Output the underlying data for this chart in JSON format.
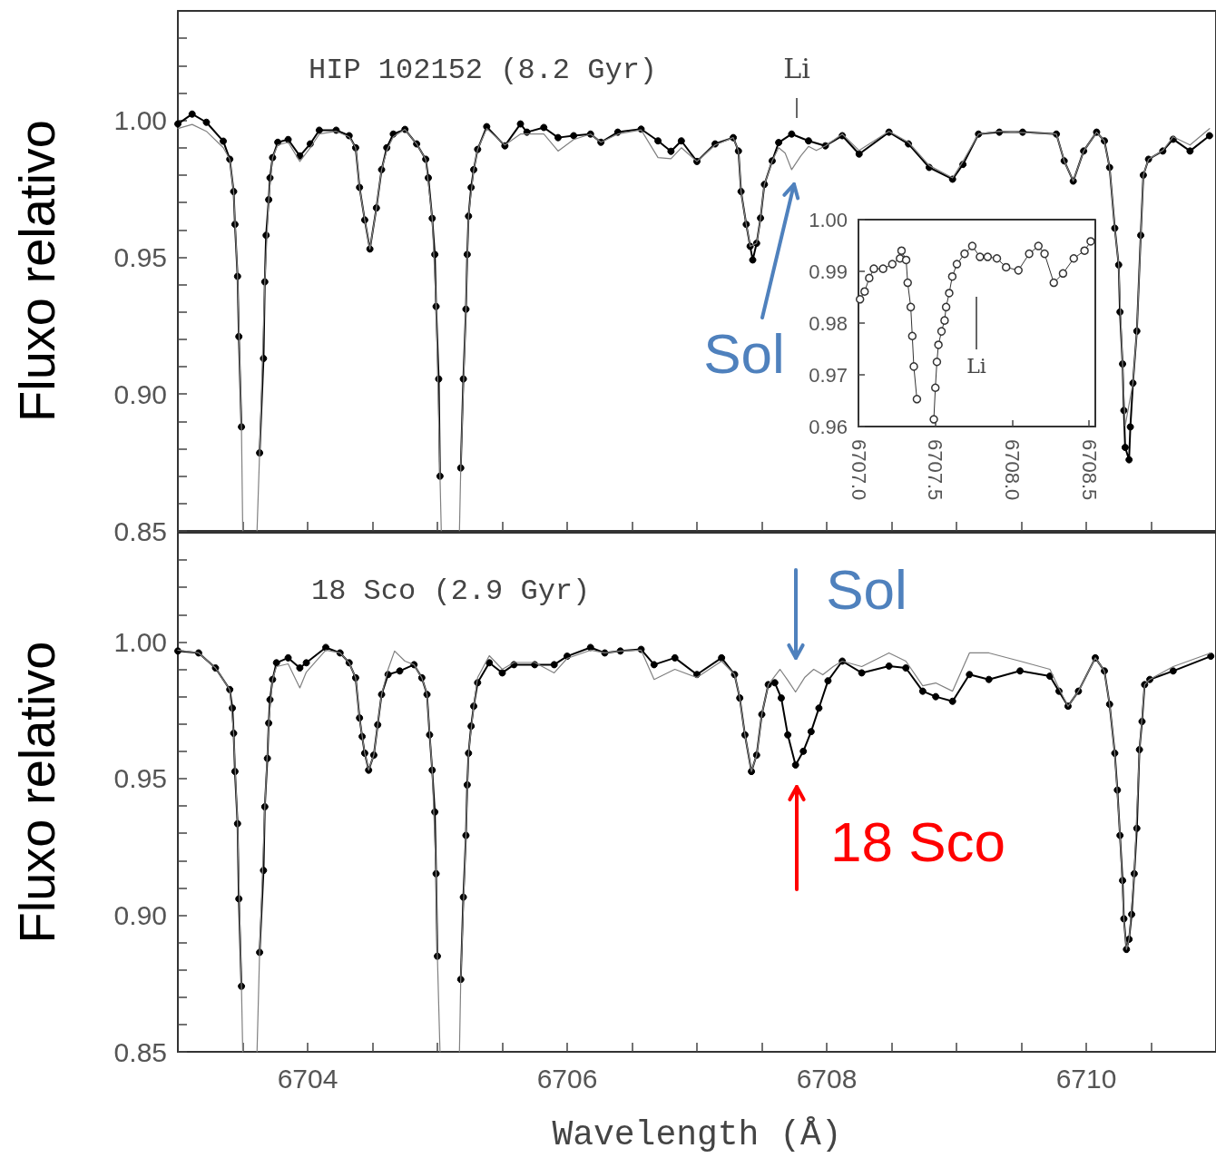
{
  "chart_data": [
    {
      "type": "line",
      "ylabel": "Fluxo relativo",
      "xlim": [
        6703,
        6711
      ],
      "ylim": [
        0.85,
        1.04
      ],
      "tick_labels": "y",
      "line_style": "solid",
      "xticks": [
        {
          "value": 6703.5,
          "label": null
        },
        {
          "value": 6704,
          "label": null
        },
        {
          "value": 6704.5,
          "label": null
        },
        {
          "value": 6705,
          "label": null
        },
        {
          "value": 6705.5,
          "label": null
        },
        {
          "value": 6706,
          "label": null
        },
        {
          "value": 6706.5,
          "label": null
        },
        {
          "value": 6707,
          "label": null
        },
        {
          "value": 6707.5,
          "label": null
        },
        {
          "value": 6708,
          "label": null
        },
        {
          "value": 6708.5,
          "label": null
        },
        {
          "value": 6709,
          "label": null
        },
        {
          "value": 6709.5,
          "label": null
        },
        {
          "value": 6710,
          "label": null
        },
        {
          "value": 6710.5,
          "label": null
        }
      ],
      "yticks": [
        {
          "value": 0.85,
          "label": "0.85"
        },
        {
          "value": 0.86,
          "label": null
        },
        {
          "value": 0.87,
          "label": null
        },
        {
          "value": 0.88,
          "label": null
        },
        {
          "value": 0.89,
          "label": null
        },
        {
          "value": 0.9,
          "label": "0.90"
        },
        {
          "value": 0.91,
          "label": null
        },
        {
          "value": 0.92,
          "label": null
        },
        {
          "value": 0.93,
          "label": null
        },
        {
          "value": 0.94,
          "label": null
        },
        {
          "value": 0.95,
          "label": "0.95"
        },
        {
          "value": 0.96,
          "label": null
        },
        {
          "value": 0.97,
          "label": null
        },
        {
          "value": 0.98,
          "label": null
        },
        {
          "value": 0.99,
          "label": null
        },
        {
          "value": 1,
          "label": "1.00"
        },
        {
          "value": 1.01,
          "label": null
        },
        {
          "value": 1.02,
          "label": null
        },
        {
          "value": 1.03,
          "label": null
        }
      ],
      "annotations": [
        "HIP 102152 (8.2 Gyr)",
        "Li",
        "Sol"
      ],
      "series": [
        {
          "color": "#000000",
          "marker": "circle",
          "x": [
            6703.0,
            6703.11,
            6703.22,
            6703.35,
            6703.4,
            6703.43,
            6703.44,
            6703.46,
            6703.47,
            6703.49,
            6703.55,
            6703.63,
            6703.66,
            6703.67,
            6703.68,
            6703.7,
            6703.71,
            6703.73,
            6703.77,
            6703.85,
            6703.94,
            6704.02,
            6704.09,
            6704.22,
            6704.32,
            6704.37,
            6704.4,
            6704.44,
            6704.48,
            6704.53,
            6704.57,
            6704.61,
            6704.66,
            6704.75,
            6704.84,
            6704.91,
            6704.93,
            6704.96,
            6704.98,
            6704.99,
            6705.01,
            6705.02,
            6705.1,
            6705.18,
            6705.2,
            6705.22,
            6705.23,
            6705.24,
            6705.26,
            6705.28,
            6705.31,
            6705.38,
            6705.52,
            6705.64,
            6705.69,
            6705.82,
            6705.93,
            6706.05,
            6706.18,
            6706.26,
            6706.39,
            6706.57,
            6706.7,
            6706.8,
            6706.88,
            6707.0,
            6707.14,
            6707.28,
            6707.32,
            6707.34,
            6707.38,
            6707.41,
            6707.43,
            6707.46,
            6707.49,
            6707.52,
            6707.58,
            6707.63,
            6707.73,
            6707.86,
            6707.99,
            6708.12,
            6708.25,
            6708.48,
            6708.63,
            6708.79,
            6708.97,
            6709.05,
            6709.17,
            6709.33,
            6709.51,
            6709.77,
            6709.83,
            6709.9,
            6709.98,
            6710.08,
            6710.14,
            6710.18,
            6710.22,
            6710.25,
            6710.26,
            6710.28,
            6710.29,
            6710.3,
            6710.33,
            6710.34,
            6710.36,
            6710.39,
            6710.42,
            6710.44,
            6710.48,
            6710.59,
            6710.67,
            6710.8,
            6710.95
          ],
          "values": [
            0.9987,
            1.0023,
            0.9993,
            0.9924,
            0.9858,
            0.974,
            0.962,
            0.943,
            0.921,
            0.888,
            null,
            0.8785,
            0.913,
            0.941,
            0.958,
            0.971,
            0.979,
            0.9864,
            0.992,
            0.993,
            0.987,
            0.9914,
            0.9964,
            0.9964,
            0.9944,
            0.99,
            0.9755,
            0.9636,
            0.953,
            0.968,
            0.982,
            0.99,
            0.995,
            0.9967,
            0.9914,
            0.9858,
            0.979,
            0.9642,
            0.951,
            0.932,
            0.9055,
            0.87,
            null,
            0.873,
            0.9055,
            0.931,
            0.951,
            0.965,
            0.9755,
            0.982,
            0.9894,
            0.9977,
            0.9907,
            0.9987,
            0.9957,
            0.9974,
            0.9937,
            0.9944,
            0.995,
            0.992,
            0.9957,
            0.9968,
            0.9925,
            0.9887,
            0.9925,
            0.985,
            0.9914,
            0.9937,
            0.9888,
            0.974,
            0.962,
            0.954,
            0.949,
            0.9551,
            0.9643,
            0.9766,
            0.9852,
            0.9919,
            0.995,
            0.9925,
            0.9907,
            0.9944,
            0.9877,
            0.9957,
            0.9914,
            0.9828,
            0.9785,
            0.9839,
            0.995,
            0.9957,
            0.9957,
            0.995,
            0.9852,
            0.9778,
            0.9888,
            0.9957,
            0.9925,
            0.9828,
            0.9606,
            0.9472,
            0.93,
            0.911,
            0.894,
            0.8805,
            0.876,
            0.888,
            0.904,
            0.923,
            0.958,
            0.98,
            0.9858,
            0.9888,
            0.9931,
            0.9888,
            0.9944
          ]
        },
        {
          "color": "#808080",
          "marker": "none",
          "x": [
            6703.0,
            6703.11,
            6703.22,
            6703.35,
            6703.4,
            6703.43,
            6703.46,
            6703.49,
            6703.5,
            6703.55,
            6703.61,
            6703.63,
            6703.67,
            6703.7,
            6703.73,
            6703.77,
            6703.85,
            6703.94,
            6704.02,
            6704.09,
            6704.22,
            6704.32,
            6704.37,
            6704.4,
            6704.44,
            6704.48,
            6704.53,
            6704.57,
            6704.61,
            6704.66,
            6704.75,
            6704.84,
            6704.91,
            6704.96,
            6704.99,
            6705.02,
            6705.03,
            6705.1,
            6705.17,
            6705.18,
            6705.22,
            6705.24,
            6705.28,
            6705.31,
            6705.38,
            6705.52,
            6705.64,
            6705.82,
            6705.93,
            6706.05,
            6706.18,
            6706.26,
            6706.39,
            6706.57,
            6706.7,
            6706.8,
            6706.88,
            6707.0,
            6707.14,
            6707.28,
            6707.32,
            6707.34,
            6707.38,
            6707.41,
            6707.46,
            6707.49,
            6707.52,
            6707.58,
            6707.63,
            6707.68,
            6707.73,
            6707.8,
            6707.86,
            6707.92,
            6707.99,
            6708.12,
            6708.25,
            6708.48,
            6708.63,
            6708.79,
            6708.97,
            6709.05,
            6709.17,
            6709.33,
            6709.51,
            6709.77,
            6709.83,
            6709.9,
            6709.98,
            6710.08,
            6710.14,
            6710.18,
            6710.22,
            6710.25,
            6710.28,
            6710.3,
            6710.36,
            6710.39,
            6710.42,
            6710.44,
            6710.48,
            6710.59,
            6710.67,
            6710.8,
            6710.95
          ],
          "values": [
            0.997,
            0.9985,
            0.996,
            0.99,
            0.9858,
            0.974,
            0.943,
            0.888,
            0.85,
            null,
            0.85,
            0.8785,
            0.941,
            0.971,
            0.9864,
            0.991,
            0.992,
            0.985,
            0.99,
            0.995,
            0.996,
            0.994,
            0.99,
            0.9755,
            0.9636,
            0.953,
            0.968,
            0.982,
            0.989,
            0.994,
            0.9967,
            0.9914,
            0.9858,
            0.9642,
            0.932,
            0.87,
            0.85,
            null,
            0.85,
            0.873,
            0.931,
            0.965,
            0.982,
            0.9894,
            0.997,
            0.991,
            0.995,
            0.995,
            0.9888,
            0.993,
            0.995,
            0.992,
            0.995,
            0.9965,
            0.9864,
            0.986,
            0.99,
            0.985,
            0.991,
            0.9937,
            0.9888,
            0.974,
            0.962,
            0.954,
            0.9551,
            0.9643,
            0.9766,
            0.9852,
            0.99,
            0.988,
            0.982,
            0.987,
            0.9905,
            0.989,
            0.9907,
            0.995,
            0.989,
            0.996,
            0.992,
            0.9835,
            0.979,
            0.985,
            0.995,
            0.996,
            0.9955,
            0.995,
            0.9852,
            0.9778,
            0.9888,
            0.9957,
            0.9925,
            0.9828,
            0.9606,
            0.9472,
            0.911,
            0.8884,
            0.904,
            0.923,
            0.958,
            0.98,
            0.9858,
            0.989,
            0.994,
            0.991,
            0.997
          ]
        }
      ]
    },
    {
      "type": "line",
      "xlim": [
        6707.0,
        6708.54
      ],
      "ylim": [
        0.96,
        1.0
      ],
      "line_style": "solid",
      "xticks": [
        {
          "value": 6707,
          "label": "6707.0"
        },
        {
          "value": 6707.5,
          "label": "6707.5"
        },
        {
          "value": 6708,
          "label": "6708.0"
        },
        {
          "value": 6708.5,
          "label": "6708.5"
        }
      ],
      "yticks": [
        {
          "value": 0.96,
          "label": "0.96"
        },
        {
          "value": 0.97,
          "label": "0.97"
        },
        {
          "value": 0.98,
          "label": "0.98"
        },
        {
          "value": 0.99,
          "label": "0.99"
        },
        {
          "value": 1,
          "label": "1.00"
        }
      ],
      "annotations": [
        "Li"
      ],
      "series": [
        {
          "color": "#333333",
          "marker": "circle",
          "x": [
            6707.01,
            6707.04,
            6707.07,
            6707.1,
            6707.16,
            6707.22,
            6707.27,
            6707.28,
            6707.31,
            6707.32,
            6707.34,
            6707.35,
            6707.36,
            6707.38,
            6707.45,
            6707.49,
            6707.5,
            6707.51,
            6707.52,
            6707.54,
            6707.56,
            6707.57,
            6707.59,
            6707.61,
            6707.64,
            6707.69,
            6707.74,
            6707.79,
            6707.84,
            6707.9,
            6707.96,
            6708.04,
            6708.11,
            6708.17,
            6708.21,
            6708.27,
            6708.33,
            6708.4,
            6708.47,
            6708.51
          ],
          "values": [
            0.9846,
            0.9861,
            0.9887,
            0.9905,
            0.9905,
            0.9914,
            0.9925,
            0.994,
            0.9922,
            0.9878,
            0.9831,
            0.9775,
            0.9716,
            0.9653,
            null,
            0.9614,
            0.9675,
            0.9725,
            0.9758,
            0.9784,
            0.9805,
            0.9831,
            0.9858,
            0.989,
            0.9914,
            0.9934,
            0.9949,
            0.9928,
            0.9928,
            0.9925,
            0.9908,
            0.9902,
            0.9934,
            0.9949,
            0.9934,
            0.9878,
            0.9896,
            0.9925,
            0.994,
            0.9958
          ]
        }
      ]
    },
    {
      "type": "line",
      "ylabel": "Fluxo relativo",
      "xlabel": "Wavelength (Å)",
      "xlim": [
        6703,
        6711
      ],
      "ylim": [
        0.85,
        1.04
      ],
      "line_style": "solid",
      "xticks": [
        {
          "value": 6703.5,
          "label": null
        },
        {
          "value": 6704,
          "label": "6704"
        },
        {
          "value": 6704.5,
          "label": null
        },
        {
          "value": 6705,
          "label": null
        },
        {
          "value": 6705.5,
          "label": null
        },
        {
          "value": 6706,
          "label": "6706"
        },
        {
          "value": 6706.5,
          "label": null
        },
        {
          "value": 6707,
          "label": null
        },
        {
          "value": 6707.5,
          "label": null
        },
        {
          "value": 6708,
          "label": "6708"
        },
        {
          "value": 6708.5,
          "label": null
        },
        {
          "value": 6709,
          "label": null
        },
        {
          "value": 6709.5,
          "label": null
        },
        {
          "value": 6710,
          "label": "6710"
        },
        {
          "value": 6710.5,
          "label": null
        }
      ],
      "yticks": [
        {
          "value": 0.85,
          "label": "0.85"
        },
        {
          "value": 0.86,
          "label": null
        },
        {
          "value": 0.87,
          "label": null
        },
        {
          "value": 0.88,
          "label": null
        },
        {
          "value": 0.89,
          "label": null
        },
        {
          "value": 0.9,
          "label": "0.90"
        },
        {
          "value": 0.91,
          "label": null
        },
        {
          "value": 0.92,
          "label": null
        },
        {
          "value": 0.93,
          "label": null
        },
        {
          "value": 0.94,
          "label": null
        },
        {
          "value": 0.95,
          "label": "0.95"
        },
        {
          "value": 0.96,
          "label": null
        },
        {
          "value": 0.97,
          "label": null
        },
        {
          "value": 0.98,
          "label": null
        },
        {
          "value": 0.99,
          "label": null
        },
        {
          "value": 1,
          "label": "1.00"
        },
        {
          "value": 1.01,
          "label": null
        },
        {
          "value": 1.02,
          "label": null
        },
        {
          "value": 1.03,
          "label": null
        }
      ],
      "annotations": [
        "18 Sco (2.9 Gyr)",
        "Sol",
        "18 Sco"
      ],
      "series": [
        {
          "color": "#000000",
          "marker": "circle",
          "x": [
            6703.0,
            6703.16,
            6703.29,
            6703.4,
            6703.42,
            6703.43,
            6703.44,
            6703.46,
            6703.47,
            6703.49,
            6703.55,
            6703.63,
            6703.66,
            6703.67,
            6703.69,
            6703.7,
            6703.71,
            6703.73,
            6703.76,
            6703.85,
            6703.94,
            6703.99,
            6704.14,
            6704.25,
            6704.32,
            6704.37,
            6704.4,
            6704.42,
            6704.44,
            6704.47,
            6704.51,
            6704.54,
            6704.57,
            6704.62,
            6704.71,
            6704.82,
            6704.88,
            6704.92,
            6704.94,
            6704.96,
            6704.98,
            6704.99,
            6705.0,
            6705.1,
            6705.18,
            6705.2,
            6705.22,
            6705.23,
            6705.24,
            6705.26,
            6705.28,
            6705.31,
            6705.4,
            6705.5,
            6705.59,
            6705.75,
            6705.9,
            6706.0,
            6706.18,
            6706.29,
            6706.41,
            6706.57,
            6706.67,
            6706.83,
            6707.0,
            6707.19,
            6707.29,
            6707.33,
            6707.37,
            6707.42,
            6707.46,
            6707.5,
            6707.55,
            6707.6,
            6707.65,
            6707.7,
            6707.76,
            6707.82,
            6707.88,
            6707.94,
            6708.01,
            6708.12,
            6708.27,
            6708.48,
            6708.61,
            6708.74,
            6708.84,
            6708.97,
            6709.1,
            6709.25,
            6709.49,
            6709.72,
            6709.79,
            6709.86,
            6709.94,
            6710.07,
            6710.14,
            6710.18,
            6710.22,
            6710.24,
            6710.26,
            6710.28,
            6710.29,
            6710.31,
            6710.33,
            6710.35,
            6710.37,
            6710.39,
            6710.41,
            6710.43,
            6710.45,
            6710.49,
            6710.67,
            6710.96
          ],
          "values": [
            0.9967,
            0.996,
            0.9905,
            0.9826,
            0.9758,
            0.9666,
            0.9526,
            0.9335,
            0.906,
            0.874,
            null,
            0.8864,
            0.9164,
            0.9397,
            0.9574,
            0.9703,
            0.9789,
            0.9863,
            0.9924,
            0.9942,
            0.9905,
            0.9924,
            0.998,
            0.996,
            0.9924,
            0.9869,
            0.9722,
            0.9654,
            0.9593,
            0.9531,
            0.9586,
            0.9697,
            0.9808,
            0.9881,
            0.9894,
            0.9917,
            0.9869,
            0.9808,
            0.966,
            0.9531,
            0.9378,
            0.9152,
            0.885,
            null,
            0.8765,
            0.9066,
            0.9292,
            0.9477,
            0.9593,
            0.9692,
            0.9765,
            0.9851,
            0.9924,
            0.9887,
            0.9917,
            0.9917,
            0.9917,
            0.9948,
            0.998,
            0.996,
            0.9967,
            0.9973,
            0.9917,
            0.9942,
            0.9881,
            0.9942,
            0.9881,
            0.9795,
            0.966,
            0.9526,
            0.9586,
            0.9735,
            0.9844,
            0.9851,
            0.9795,
            0.966,
            0.955,
            0.96,
            0.9672,
            0.9758,
            0.9858,
            0.993,
            0.9887,
            0.9912,
            0.9905,
            0.982,
            0.98,
            0.9783,
            0.9881,
            0.9863,
            0.9894,
            0.9875,
            0.982,
            0.9765,
            0.982,
            0.9942,
            0.9894,
            0.9772,
            0.9593,
            0.9458,
            0.9292,
            0.9127,
            0.8987,
            0.8875,
            0.8912,
            0.9003,
            0.9152,
            0.9318,
            0.9606,
            0.9709,
            0.9844,
            0.9863,
            0.9894,
            0.9948
          ]
        },
        {
          "color": "#808080",
          "marker": "none",
          "x": [
            6703.0,
            6703.16,
            6703.29,
            6703.4,
            6703.43,
            6703.46,
            6703.49,
            6703.5,
            6703.55,
            6703.61,
            6703.63,
            6703.67,
            6703.7,
            6703.73,
            6703.76,
            6703.85,
            6703.94,
            6703.99,
            6704.14,
            6704.25,
            6704.32,
            6704.37,
            6704.4,
            6704.44,
            6704.47,
            6704.51,
            6704.54,
            6704.57,
            6704.62,
            6704.67,
            6704.75,
            6704.82,
            6704.88,
            6704.92,
            6704.96,
            6704.99,
            6705.0,
            6705.02,
            6705.1,
            6705.17,
            6705.18,
            6705.22,
            6705.24,
            6705.28,
            6705.31,
            6705.4,
            6705.5,
            6705.59,
            6705.75,
            6705.9,
            6706.0,
            6706.18,
            6706.29,
            6706.41,
            6706.57,
            6706.67,
            6706.83,
            6707.0,
            6707.19,
            6707.29,
            6707.33,
            6707.37,
            6707.42,
            6707.46,
            6707.5,
            6707.55,
            6707.64,
            6707.7,
            6707.76,
            6707.83,
            6707.9,
            6707.97,
            6708.05,
            6708.12,
            6708.27,
            6708.48,
            6708.61,
            6708.74,
            6708.84,
            6708.97,
            6709.1,
            6709.25,
            6709.49,
            6709.72,
            6709.79,
            6709.86,
            6709.94,
            6710.07,
            6710.14,
            6710.18,
            6710.22,
            6710.26,
            6710.29,
            6710.31,
            6710.33,
            6710.37,
            6710.41,
            6710.45,
            6710.49,
            6710.67,
            6710.96
          ],
          "values": [
            0.997,
            0.996,
            0.9905,
            0.9826,
            0.9666,
            0.9335,
            0.874,
            0.85,
            null,
            0.85,
            0.8864,
            0.9397,
            0.9703,
            0.9863,
            0.991,
            0.992,
            0.9832,
            0.989,
            0.997,
            0.996,
            0.9924,
            0.9869,
            0.9722,
            0.9593,
            0.9531,
            0.9586,
            0.9697,
            0.9808,
            0.99,
            0.9967,
            0.993,
            0.9917,
            0.9869,
            0.9808,
            0.9531,
            0.9152,
            0.885,
            0.85,
            null,
            0.85,
            0.8765,
            0.9292,
            0.9593,
            0.9765,
            0.987,
            0.995,
            0.99,
            0.9925,
            0.9925,
            0.9887,
            0.994,
            0.997,
            0.996,
            0.9967,
            0.997,
            0.9863,
            0.99,
            0.987,
            0.993,
            0.9881,
            0.9795,
            0.966,
            0.9526,
            0.9586,
            0.9735,
            0.9844,
            0.99,
            0.986,
            0.9817,
            0.987,
            0.99,
            0.988,
            0.991,
            0.993,
            0.991,
            0.996,
            0.993,
            0.984,
            0.985,
            0.982,
            0.996,
            0.996,
            0.993,
            0.99,
            0.983,
            0.9765,
            0.982,
            0.9942,
            0.9894,
            0.9772,
            0.9593,
            0.9292,
            0.8987,
            0.8875,
            0.8912,
            0.9152,
            0.9606,
            0.9844,
            0.9863,
            0.991,
            0.996
          ]
        }
      ]
    }
  ]
}
